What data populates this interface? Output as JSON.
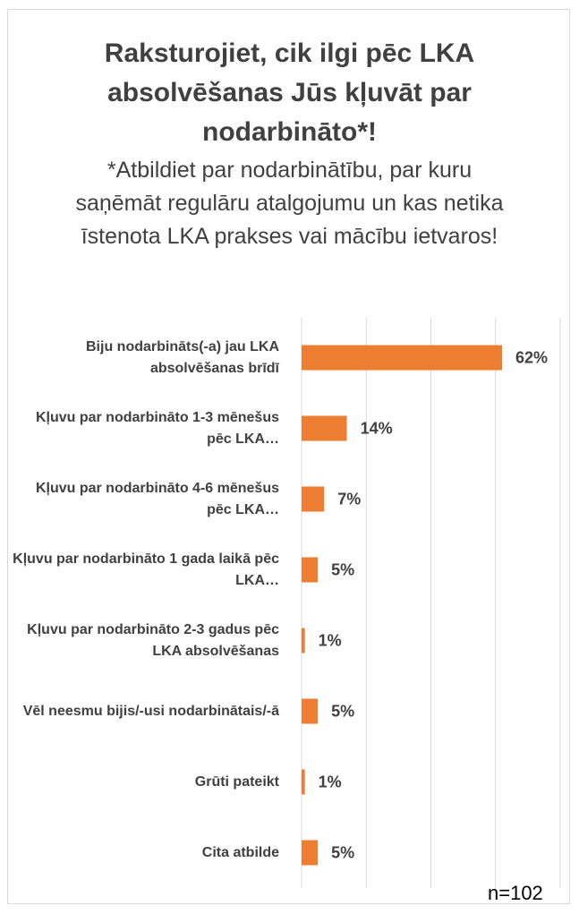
{
  "chart_data": {
    "type": "bar",
    "orientation": "horizontal",
    "title": "Raksturojiet, cik ilgi pēc LKA absolvēšanas Jūs kļuvāt par nodarbināto*!",
    "subtitle": "*Atbildiet par nodarbinātību, par kuru saņēmāt regulāru atalgojumu un kas netika īstenota LKA prakses vai mācību ietvaros!",
    "categories": [
      "Biju nodarbināts(-a) jau LKA absolvēšanas brīdī",
      "Kļuvu par nodarbināto 1-3 mēnešus pēc LKA…",
      "Kļuvu par nodarbināto 4-6 mēnešus pēc LKA…",
      "Kļuvu par nodarbināto 1 gada laikā pēc LKA…",
      "Kļuvu par nodarbināto 2-3 gadus pēc LKA absolvēšanas",
      "Vēl neesmu bijis/-usi nodarbinātais/-ā",
      "Grūti pateikt",
      "Cita atbilde"
    ],
    "values": [
      62,
      14,
      7,
      5,
      1,
      5,
      1,
      5
    ],
    "value_labels": [
      "62%",
      "14%",
      "7%",
      "5%",
      "1%",
      "5%",
      "1%",
      "5%"
    ],
    "color": "#ed7d31",
    "xlim": [
      0,
      80
    ],
    "xticks": [
      0,
      20,
      40,
      60,
      80
    ],
    "grid": true,
    "annotation": "n=102"
  }
}
